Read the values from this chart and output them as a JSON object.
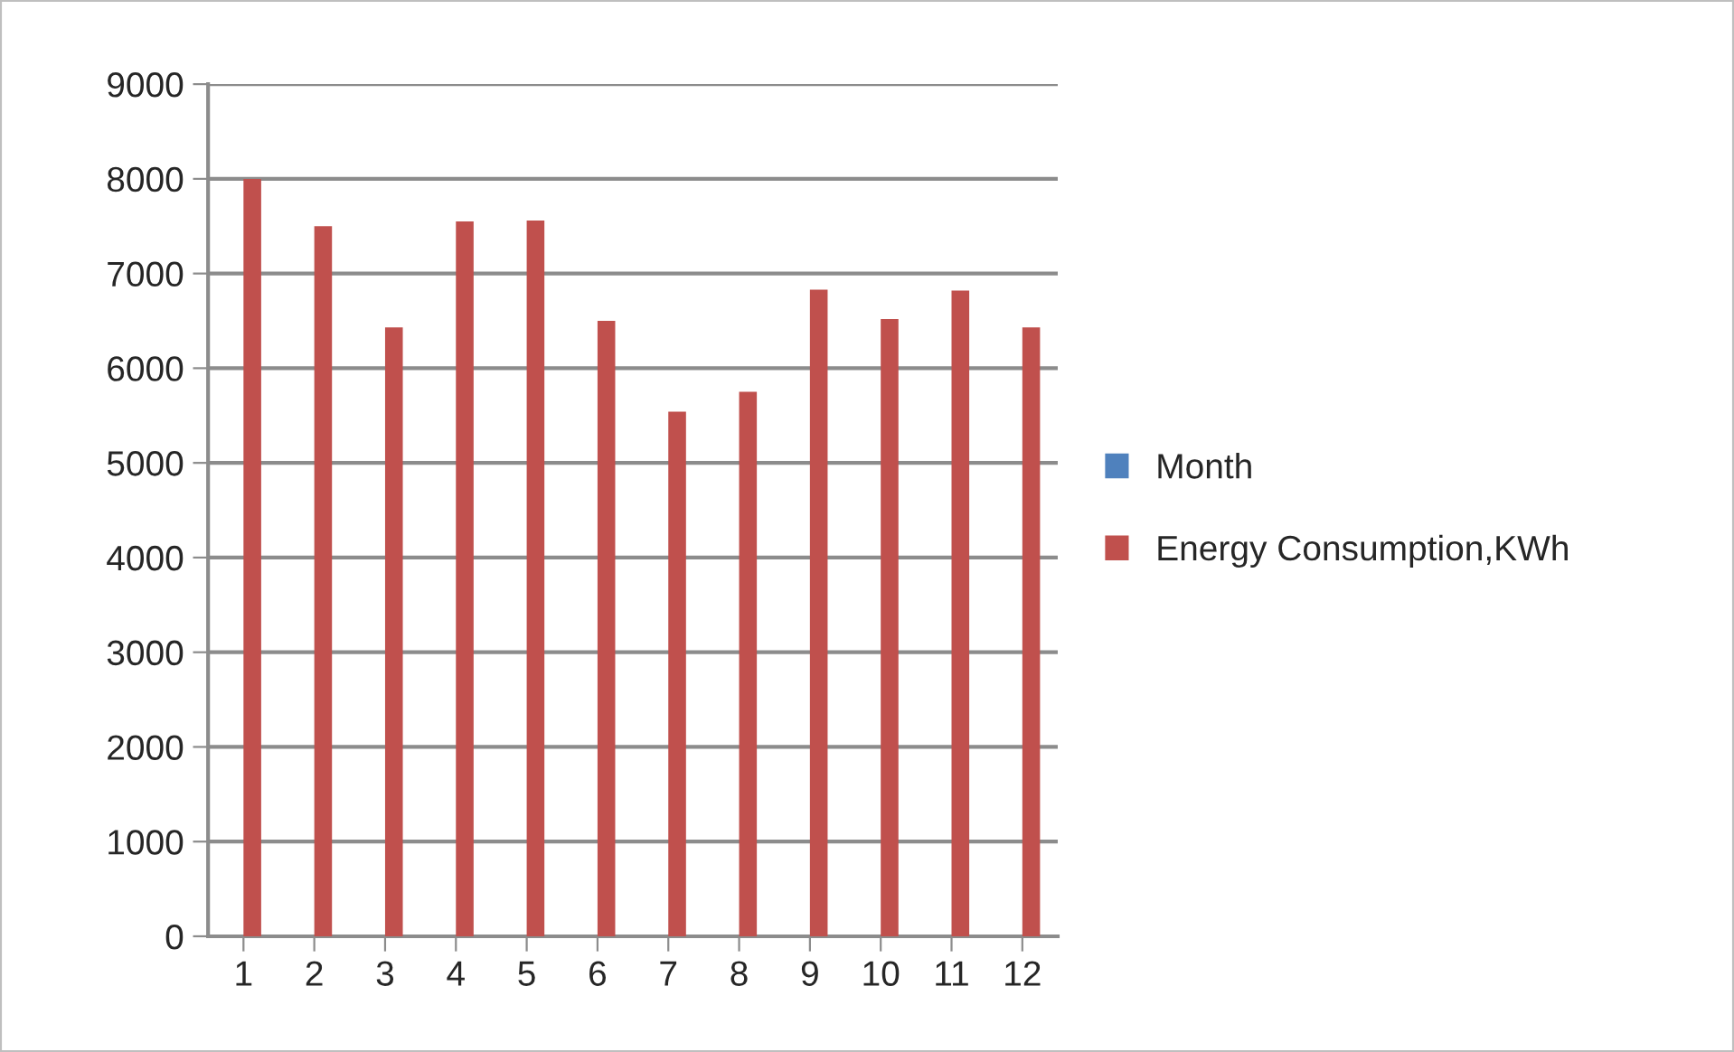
{
  "chart_data": {
    "type": "bar",
    "categories": [
      "1",
      "2",
      "3",
      "4",
      "5",
      "6",
      "7",
      "8",
      "9",
      "10",
      "11",
      "12"
    ],
    "series": [
      {
        "name": "Month",
        "color": "#4f81bd",
        "values": [
          0,
          0,
          0,
          0,
          0,
          0,
          0,
          0,
          0,
          0,
          0,
          0
        ]
      },
      {
        "name": "Energy Consumption,KWh",
        "color": "#c0504d",
        "values": [
          8000,
          7500,
          6430,
          7550,
          7560,
          6500,
          5540,
          5750,
          6830,
          6520,
          6820,
          6430
        ]
      }
    ],
    "ylim": [
      0,
      9000
    ],
    "yticks": [
      0,
      1000,
      2000,
      3000,
      4000,
      5000,
      6000,
      7000,
      8000,
      9000
    ],
    "grid": "y",
    "legend": "right"
  }
}
